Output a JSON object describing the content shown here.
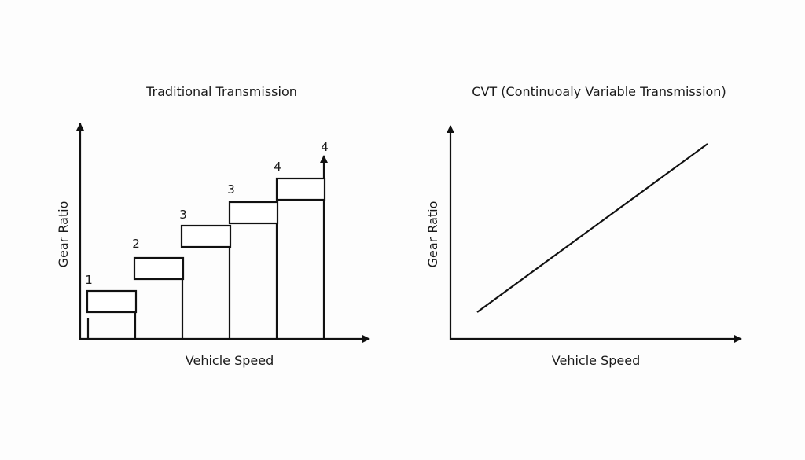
{
  "left_panel": {
    "title": "Traditional Transmission",
    "xlabel": "Vehicle Speed",
    "ylabel": "Gear Ratio",
    "gear_labels": [
      "1",
      "2",
      "3",
      "3",
      "4",
      "4"
    ]
  },
  "right_panel": {
    "title": "CVT (Continuoaly Variable Transmission)",
    "xlabel": "Vehicle Speed",
    "ylabel": "Gear Ratio"
  }
}
